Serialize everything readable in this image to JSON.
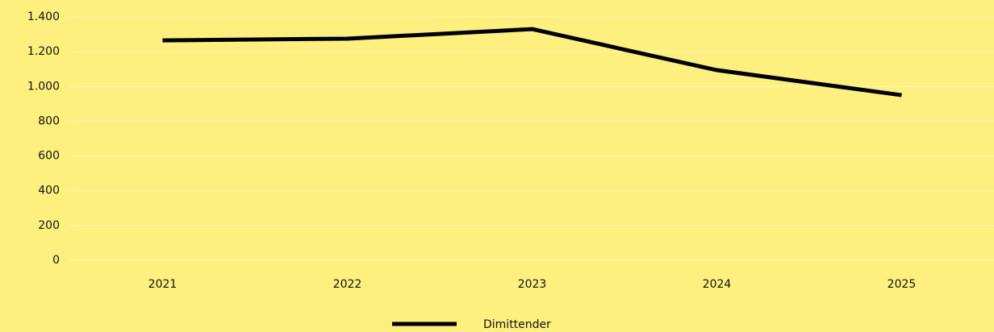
{
  "chart_data": {
    "type": "line",
    "categories": [
      "2021",
      "2022",
      "2023",
      "2024",
      "2025"
    ],
    "series": [
      {
        "name": "Dimittender",
        "color": "#000000",
        "values": [
          1265,
          1275,
          1330,
          1094,
          950
        ]
      }
    ],
    "ylim": [
      0,
      1400
    ],
    "yticks": [
      0,
      200,
      400,
      600,
      800,
      {
        "value": 1000,
        "label": "1.000"
      },
      {
        "value": 1200,
        "label": "1.200"
      },
      {
        "value": 1400,
        "label": "1.400"
      }
    ],
    "grid": true,
    "legend": "bottom"
  }
}
